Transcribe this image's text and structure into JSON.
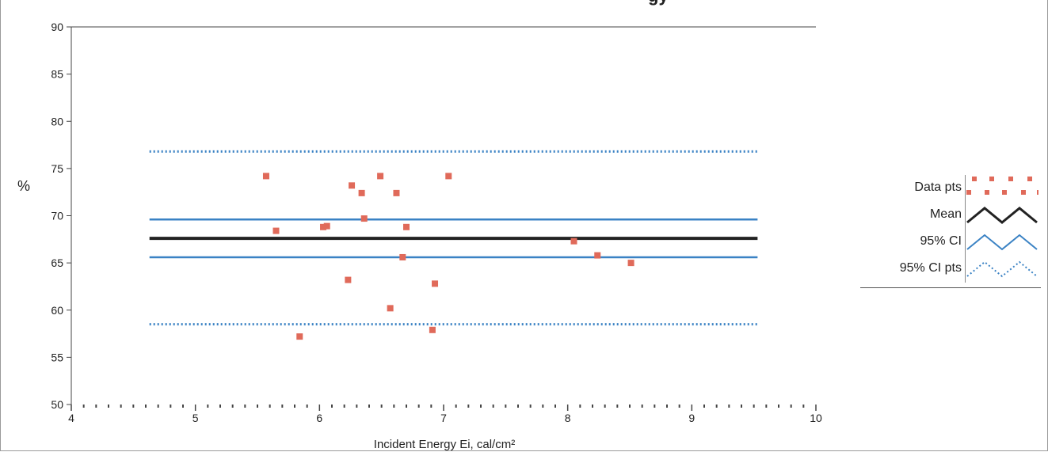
{
  "chart_data": {
    "type": "scatter",
    "title": "gy",
    "xlabel": "Incident Energy Ei, cal/cm²",
    "ylabel": "%",
    "xlim": [
      4,
      10
    ],
    "ylim": [
      50,
      90
    ],
    "x_ticks": [
      4,
      5,
      6,
      7,
      8,
      9,
      10
    ],
    "y_ticks": [
      50,
      55,
      60,
      65,
      70,
      75,
      80,
      85,
      90
    ],
    "grid": false,
    "legend_position": "right",
    "series": [
      {
        "name": "Data pts",
        "color": "#e06a5a",
        "marker": "square",
        "points": [
          [
            5.57,
            74.2
          ],
          [
            5.65,
            68.4
          ],
          [
            5.84,
            57.2
          ],
          [
            6.03,
            68.8
          ],
          [
            6.06,
            68.9
          ],
          [
            6.23,
            63.2
          ],
          [
            6.26,
            73.2
          ],
          [
            6.34,
            72.4
          ],
          [
            6.36,
            69.7
          ],
          [
            6.49,
            74.2
          ],
          [
            6.57,
            60.2
          ],
          [
            6.62,
            72.4
          ],
          [
            6.67,
            65.6
          ],
          [
            6.7,
            68.8
          ],
          [
            6.91,
            57.9
          ],
          [
            6.93,
            62.8
          ],
          [
            7.04,
            74.2
          ],
          [
            8.05,
            67.3
          ],
          [
            8.24,
            65.8
          ],
          [
            8.51,
            65.0
          ]
        ]
      },
      {
        "name": "Mean",
        "color": "#222222",
        "style": "solid-thick",
        "x_range": [
          4.63,
          9.53
        ],
        "y": 67.6
      },
      {
        "name": "95% CI",
        "color": "#3a82c4",
        "style": "solid",
        "x_range": [
          4.63,
          9.53
        ],
        "y_values": [
          69.6,
          65.6
        ]
      },
      {
        "name": "95% CI pts",
        "color": "#3a82c4",
        "style": "dotted",
        "x_range": [
          4.63,
          9.53
        ],
        "y_values": [
          76.8,
          58.5
        ]
      }
    ]
  },
  "legend": [
    {
      "key": "data",
      "label": "Data pts",
      "swatch": "data-pts-swatch-icon"
    },
    {
      "key": "mean",
      "label": "Mean",
      "swatch": "mean-swatch-icon"
    },
    {
      "key": "ci",
      "label": "95% CI",
      "swatch": "ci-swatch-icon"
    },
    {
      "key": "cipts",
      "label": "95% CI pts",
      "swatch": "ci-pts-swatch-icon"
    }
  ]
}
